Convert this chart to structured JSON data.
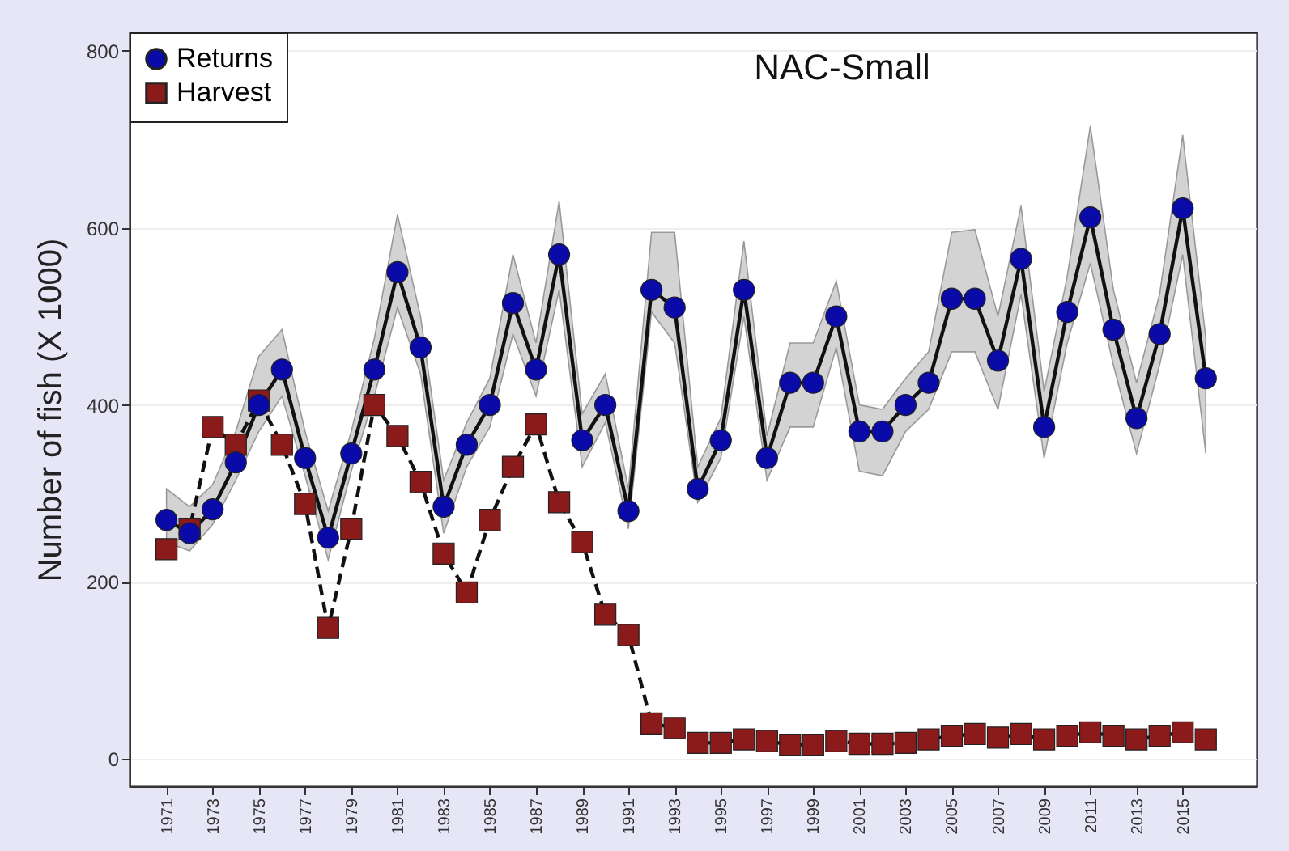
{
  "chart_data": {
    "type": "line",
    "title": "NAC-Small",
    "ylabel": "Number of fish (X 1000)",
    "x": [
      1971,
      1972,
      1973,
      1974,
      1975,
      1976,
      1977,
      1978,
      1979,
      1980,
      1981,
      1982,
      1983,
      1984,
      1985,
      1986,
      1987,
      1988,
      1989,
      1990,
      1991,
      1992,
      1993,
      1994,
      1995,
      1996,
      1997,
      1998,
      1999,
      2000,
      2001,
      2002,
      2003,
      2004,
      2005,
      2006,
      2007,
      2008,
      2009,
      2010,
      2011,
      2012,
      2013,
      2014,
      2015,
      2016
    ],
    "series": [
      {
        "name": "Returns",
        "color": "#0a0aa8",
        "marker": "circle",
        "line_style": "solid",
        "values": [
          270,
          255,
          282,
          335,
          400,
          440,
          340,
          250,
          345,
          440,
          550,
          465,
          285,
          355,
          400,
          515,
          440,
          570,
          360,
          400,
          280,
          530,
          510,
          305,
          360,
          530,
          340,
          425,
          425,
          500,
          370,
          370,
          400,
          425,
          520,
          520,
          450,
          565,
          375,
          505,
          612,
          485,
          385,
          480,
          622,
          430
        ],
        "lower": [
          245,
          235,
          265,
          315,
          370,
          410,
          320,
          225,
          325,
          410,
          510,
          435,
          255,
          330,
          375,
          480,
          410,
          530,
          330,
          380,
          260,
          505,
          470,
          290,
          340,
          500,
          315,
          375,
          375,
          465,
          325,
          320,
          370,
          395,
          460,
          460,
          395,
          525,
          340,
          470,
          560,
          445,
          345,
          445,
          570,
          345
        ],
        "upper": [
          305,
          285,
          310,
          370,
          455,
          485,
          370,
          280,
          370,
          475,
          615,
          500,
          315,
          380,
          430,
          570,
          470,
          630,
          390,
          435,
          305,
          595,
          595,
          330,
          385,
          585,
          365,
          470,
          470,
          540,
          400,
          395,
          430,
          460,
          595,
          598,
          500,
          625,
          415,
          545,
          715,
          530,
          425,
          525,
          705,
          475
        ]
      },
      {
        "name": "Harvest",
        "color": "#8b1a1a",
        "marker": "square",
        "line_style": "dashed",
        "values": [
          237,
          260,
          375,
          355,
          405,
          355,
          288,
          148,
          260,
          400,
          365,
          313,
          232,
          188,
          270,
          330,
          378,
          290,
          245,
          163,
          140,
          40,
          35,
          18,
          18,
          22,
          20,
          16,
          16,
          20,
          17,
          17,
          18,
          22,
          26,
          28,
          24,
          28,
          22,
          26,
          30,
          26,
          22,
          26,
          30,
          22
        ]
      }
    ],
    "xlim": [
      1969.4,
      2018.2
    ],
    "xticks": [
      1971,
      1973,
      1975,
      1977,
      1979,
      1981,
      1983,
      1985,
      1987,
      1989,
      1991,
      1993,
      1995,
      1997,
      1999,
      2001,
      2003,
      2005,
      2007,
      2009,
      2011,
      2013,
      2015
    ],
    "ylim": [
      -31,
      821
    ],
    "yticks": [
      0,
      200,
      400,
      600,
      800
    ],
    "grid": "y",
    "legend": "top left"
  }
}
